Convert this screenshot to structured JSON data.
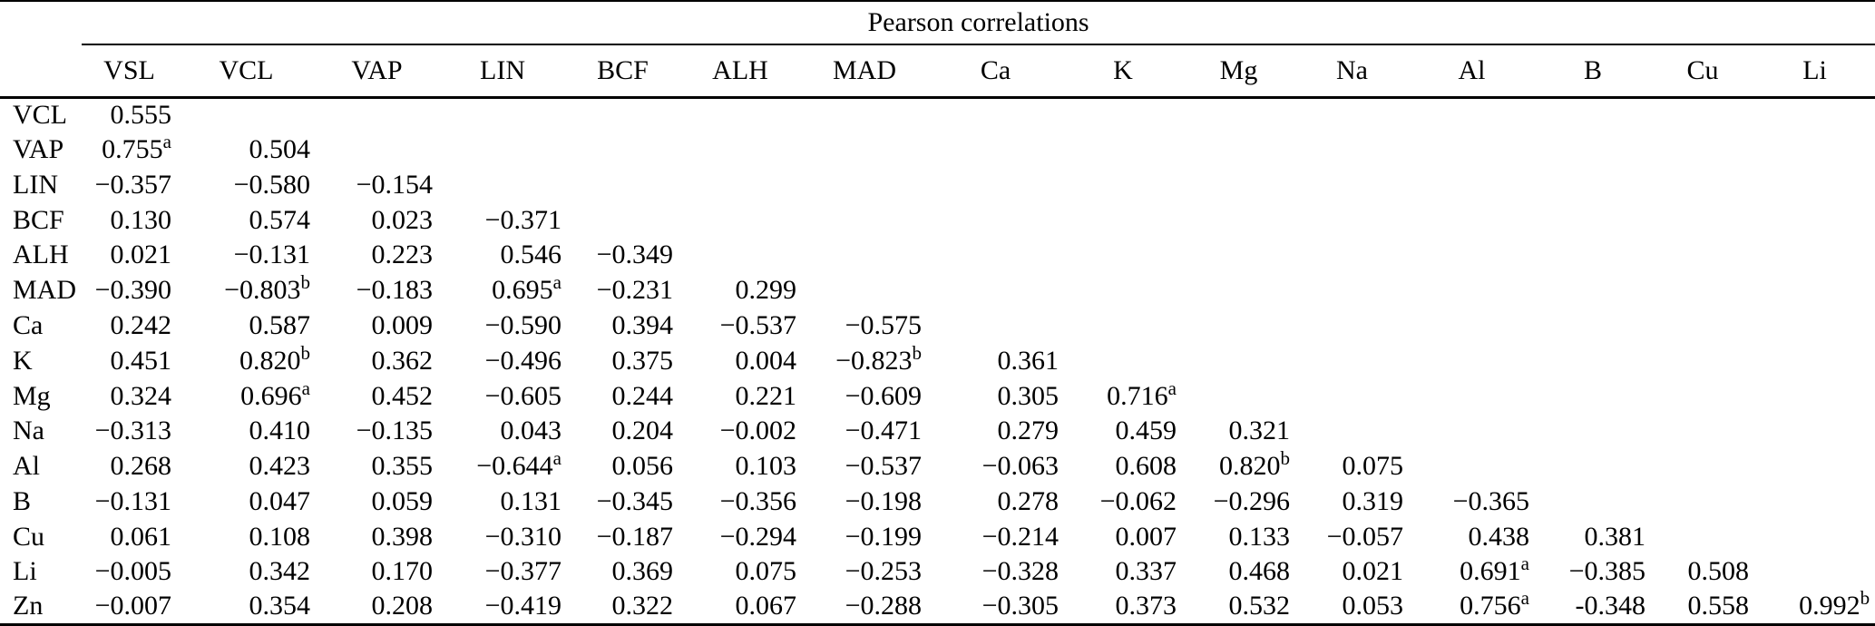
{
  "table": {
    "group_header": "Pearson correlations",
    "columns": [
      "VSL",
      "VCL",
      "VAP",
      "LIN",
      "BCF",
      "ALH",
      "MAD",
      "Ca",
      "K",
      "Mg",
      "Na",
      "Al",
      "B",
      "Cu",
      "Li"
    ],
    "rows": [
      {
        "label": "VCL",
        "values": [
          "0.555"
        ]
      },
      {
        "label": "VAP",
        "values": [
          "0.755^a",
          "0.504"
        ]
      },
      {
        "label": "LIN",
        "values": [
          "−0.357",
          "−0.580",
          "−0.154"
        ]
      },
      {
        "label": "BCF",
        "values": [
          "0.130",
          "0.574",
          "0.023",
          "−0.371"
        ]
      },
      {
        "label": "ALH",
        "values": [
          "0.021",
          "−0.131",
          "0.223",
          "0.546",
          "−0.349"
        ]
      },
      {
        "label": "MAD",
        "values": [
          "−0.390",
          "−0.803^b",
          "−0.183",
          "0.695^a",
          "−0.231",
          "0.299"
        ]
      },
      {
        "label": "Ca",
        "values": [
          "0.242",
          "0.587",
          "0.009",
          "−0.590",
          "0.394",
          "−0.537",
          "−0.575"
        ]
      },
      {
        "label": "K",
        "values": [
          "0.451",
          "0.820^b",
          "0.362",
          "−0.496",
          "0.375",
          "0.004",
          "−0.823^b",
          "0.361"
        ]
      },
      {
        "label": "Mg",
        "values": [
          "0.324",
          "0.696^a",
          "0.452",
          "−0.605",
          "0.244",
          "0.221",
          "−0.609",
          "0.305",
          "0.716^a"
        ]
      },
      {
        "label": "Na",
        "values": [
          "−0.313",
          "0.410",
          "−0.135",
          "0.043",
          "0.204",
          "−0.002",
          "−0.471",
          "0.279",
          "0.459",
          "0.321"
        ]
      },
      {
        "label": "Al",
        "values": [
          "0.268",
          "0.423",
          "0.355",
          "−0.644^a",
          "0.056",
          "0.103",
          "−0.537",
          "−0.063",
          "0.608",
          "0.820^b",
          "0.075"
        ]
      },
      {
        "label": "B",
        "values": [
          "−0.131",
          "0.047",
          "0.059",
          "0.131",
          "−0.345",
          "−0.356",
          "−0.198",
          "0.278",
          "−0.062",
          "−0.296",
          "0.319",
          "−0.365"
        ]
      },
      {
        "label": "Cu",
        "values": [
          "0.061",
          "0.108",
          "0.398",
          "−0.310",
          "−0.187",
          "−0.294",
          "−0.199",
          "−0.214",
          "0.007",
          "0.133",
          "−0.057",
          "0.438",
          "0.381"
        ]
      },
      {
        "label": "Li",
        "values": [
          "−0.005",
          "0.342",
          "0.170",
          "−0.377",
          "0.369",
          "0.075",
          "−0.253",
          "−0.328",
          "0.337",
          "0.468",
          "0.021",
          "0.691^a",
          "−0.385",
          "0.508"
        ]
      },
      {
        "label": "Zn",
        "values": [
          "−0.007",
          "0.354",
          "0.208",
          "−0.419",
          "0.322",
          "0.067",
          "−0.288",
          "−0.305",
          "0.373",
          "0.532",
          "0.053",
          "0.756^a",
          "-0.348",
          "0.558",
          "0.992^b"
        ]
      }
    ],
    "superscript_markers": [
      "a",
      "b"
    ]
  }
}
